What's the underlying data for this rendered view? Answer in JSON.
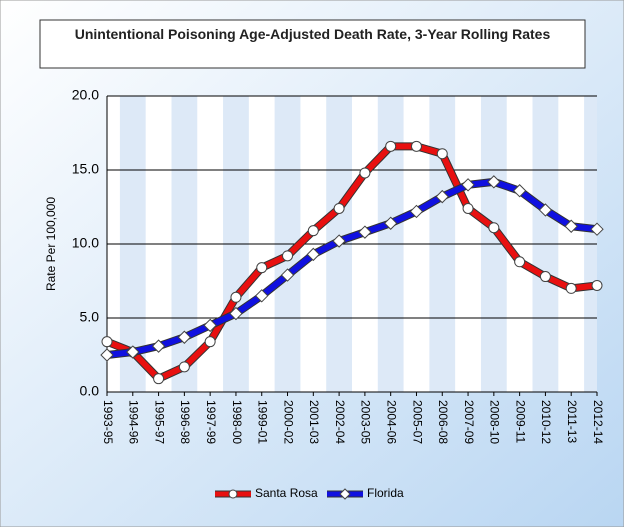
{
  "chart_data": {
    "type": "line",
    "title": "Unintentional Poisoning Age-Adjusted Death Rate, 3-Year Rolling Rates",
    "y_label": "Rate Per 100,000",
    "categories": [
      "1993-95",
      "1994-96",
      "1995-97",
      "1996-98",
      "1997-99",
      "1998-00",
      "1999-01",
      "2000-02",
      "2001-03",
      "2002-04",
      "2003-05",
      "2004-06",
      "2005-07",
      "2006-08",
      "2007-09",
      "2008-10",
      "2009-11",
      "2010-12",
      "2011-13",
      "2012-14"
    ],
    "series": [
      {
        "name": "Santa Rosa",
        "color": "#e81010",
        "marker": "circle",
        "values": [
          3.4,
          2.7,
          0.9,
          1.7,
          3.4,
          6.4,
          8.4,
          9.2,
          10.9,
          12.4,
          14.8,
          16.6,
          16.6,
          16.1,
          12.4,
          11.1,
          8.8,
          7.8,
          7.0,
          7.2
        ]
      },
      {
        "name": "Florida",
        "color": "#1010e0",
        "marker": "diamond",
        "values": [
          2.5,
          2.7,
          3.1,
          3.7,
          4.5,
          5.3,
          6.5,
          7.9,
          9.3,
          10.2,
          10.8,
          11.4,
          12.2,
          13.2,
          14.0,
          14.2,
          13.6,
          12.3,
          11.2,
          11.0
        ]
      }
    ],
    "ylim": [
      0,
      20
    ],
    "yticks": [
      {
        "value": 0,
        "label": "0.0"
      },
      {
        "value": 5,
        "label": "5.0"
      },
      {
        "value": 10,
        "label": "10.0"
      },
      {
        "value": 15,
        "label": "15.0"
      },
      {
        "value": 20,
        "label": "20.0"
      }
    ],
    "grid": true,
    "legend": "bottom"
  }
}
